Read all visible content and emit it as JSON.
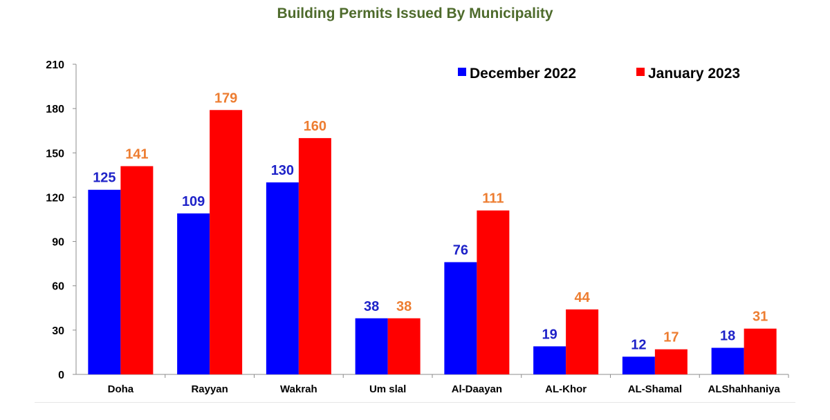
{
  "chart_data": {
    "type": "bar",
    "title": "Building Permits Issued By Municipality",
    "xlabel": "",
    "ylabel": "",
    "categories": [
      "Doha",
      "Rayyan",
      "Wakrah",
      "Um slal",
      "Al-Daayan",
      "AL-Khor",
      "AL-Shamal",
      "ALShahhaniya"
    ],
    "series": [
      {
        "name": "December 2022",
        "values": [
          125,
          109,
          130,
          38,
          76,
          19,
          12,
          18
        ],
        "color": "#0000ff",
        "label_color": "#1e22c8"
      },
      {
        "name": "January 2023",
        "values": [
          141,
          179,
          160,
          38,
          111,
          44,
          17,
          31
        ],
        "color": "#ff0000",
        "label_color": "#ed7d31"
      }
    ],
    "ylim": [
      0,
      210
    ],
    "yticks": [
      0,
      30,
      60,
      90,
      120,
      150,
      180,
      210
    ],
    "grid": false,
    "legend_position": "top-right",
    "data_labels": true
  }
}
